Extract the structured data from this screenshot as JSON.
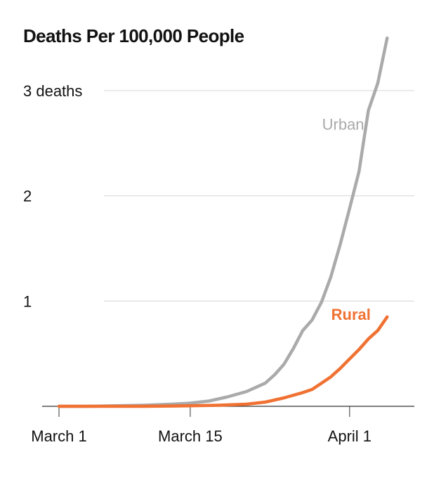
{
  "chart_data": {
    "type": "line",
    "title": "Deaths Per 100,000 People",
    "xlabel": "",
    "ylabel": "",
    "ylim": [
      0,
      3.5
    ],
    "grid": "horizontal",
    "legend": "inline labels",
    "x_ticks": [
      {
        "date": "2020-03-01",
        "label": "March 1"
      },
      {
        "date": "2020-03-15",
        "label": "March 15"
      },
      {
        "date": "2020-04-01",
        "label": "April 1"
      }
    ],
    "y_ticks": [
      {
        "value": 0,
        "label": ""
      },
      {
        "value": 1,
        "label": "1"
      },
      {
        "value": 2,
        "label": "2"
      },
      {
        "value": 3,
        "label": "3 deaths"
      }
    ],
    "series": [
      {
        "name": "Urban",
        "color": "#aaaaaa",
        "label_weight": "normal",
        "points": [
          {
            "x": "2020-03-01",
            "y": 0.0
          },
          {
            "x": "2020-03-04",
            "y": 0.0
          },
          {
            "x": "2020-03-07",
            "y": 0.005
          },
          {
            "x": "2020-03-10",
            "y": 0.01
          },
          {
            "x": "2020-03-13",
            "y": 0.02
          },
          {
            "x": "2020-03-15",
            "y": 0.03
          },
          {
            "x": "2020-03-17",
            "y": 0.05
          },
          {
            "x": "2020-03-19",
            "y": 0.09
          },
          {
            "x": "2020-03-21",
            "y": 0.14
          },
          {
            "x": "2020-03-22",
            "y": 0.18
          },
          {
            "x": "2020-03-23",
            "y": 0.22
          },
          {
            "x": "2020-03-24",
            "y": 0.3
          },
          {
            "x": "2020-03-25",
            "y": 0.4
          },
          {
            "x": "2020-03-26",
            "y": 0.55
          },
          {
            "x": "2020-03-27",
            "y": 0.72
          },
          {
            "x": "2020-03-28",
            "y": 0.82
          },
          {
            "x": "2020-03-29",
            "y": 0.99
          },
          {
            "x": "2020-03-30",
            "y": 1.23
          },
          {
            "x": "2020-03-31",
            "y": 1.54
          },
          {
            "x": "2020-04-01",
            "y": 1.88
          },
          {
            "x": "2020-04-02",
            "y": 2.23
          },
          {
            "x": "2020-04-03",
            "y": 2.81
          },
          {
            "x": "2020-04-04",
            "y": 3.07
          },
          {
            "x": "2020-04-05",
            "y": 3.5
          }
        ]
      },
      {
        "name": "Rural",
        "color": "#f07132",
        "label_weight": "bold",
        "points": [
          {
            "x": "2020-03-01",
            "y": 0.0
          },
          {
            "x": "2020-03-10",
            "y": 0.0
          },
          {
            "x": "2020-03-15",
            "y": 0.005
          },
          {
            "x": "2020-03-18",
            "y": 0.01
          },
          {
            "x": "2020-03-21",
            "y": 0.02
          },
          {
            "x": "2020-03-23",
            "y": 0.04
          },
          {
            "x": "2020-03-25",
            "y": 0.08
          },
          {
            "x": "2020-03-27",
            "y": 0.13
          },
          {
            "x": "2020-03-28",
            "y": 0.16
          },
          {
            "x": "2020-03-29",
            "y": 0.22
          },
          {
            "x": "2020-03-30",
            "y": 0.28
          },
          {
            "x": "2020-03-31",
            "y": 0.36
          },
          {
            "x": "2020-04-01",
            "y": 0.45
          },
          {
            "x": "2020-04-02",
            "y": 0.54
          },
          {
            "x": "2020-04-03",
            "y": 0.64
          },
          {
            "x": "2020-04-04",
            "y": 0.72
          },
          {
            "x": "2020-04-05",
            "y": 0.85
          }
        ]
      }
    ]
  }
}
